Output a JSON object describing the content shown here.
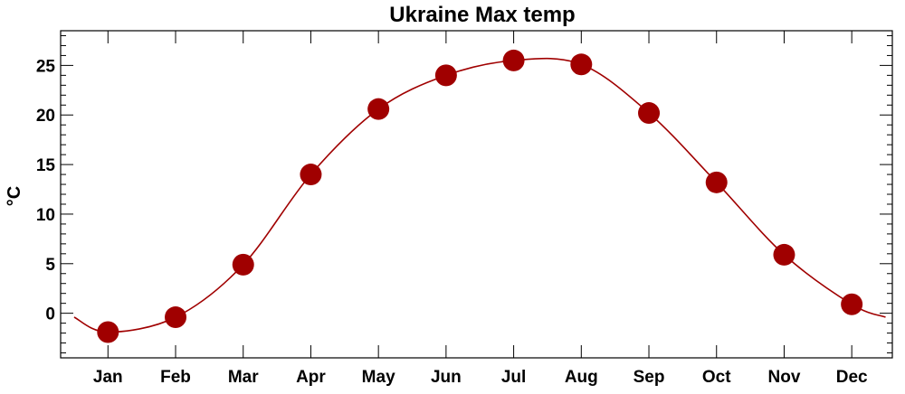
{
  "chart_data": {
    "type": "line",
    "title": "Ukraine Max temp",
    "ylabel": "°C",
    "xlabel": "",
    "categories": [
      "Jan",
      "Feb",
      "Mar",
      "Apr",
      "May",
      "Jun",
      "Jul",
      "Aug",
      "Sep",
      "Oct",
      "Nov",
      "Dec"
    ],
    "series": [
      {
        "values": [
          -1.9,
          -0.4,
          4.9,
          14.0,
          20.6,
          24.0,
          25.5,
          25.1,
          20.2,
          13.2,
          5.9,
          0.9
        ],
        "color": "#a00000",
        "marker": "circle"
      }
    ],
    "edge_values": {
      "before": -0.4,
      "after": -0.4
    },
    "ylim": [
      -4.5,
      28.5
    ],
    "yticks": [
      0,
      5,
      10,
      15,
      20,
      25
    ],
    "grid": false,
    "colors": {
      "line": "#a00000",
      "marker": "#a00000",
      "axes": "#000000"
    }
  }
}
